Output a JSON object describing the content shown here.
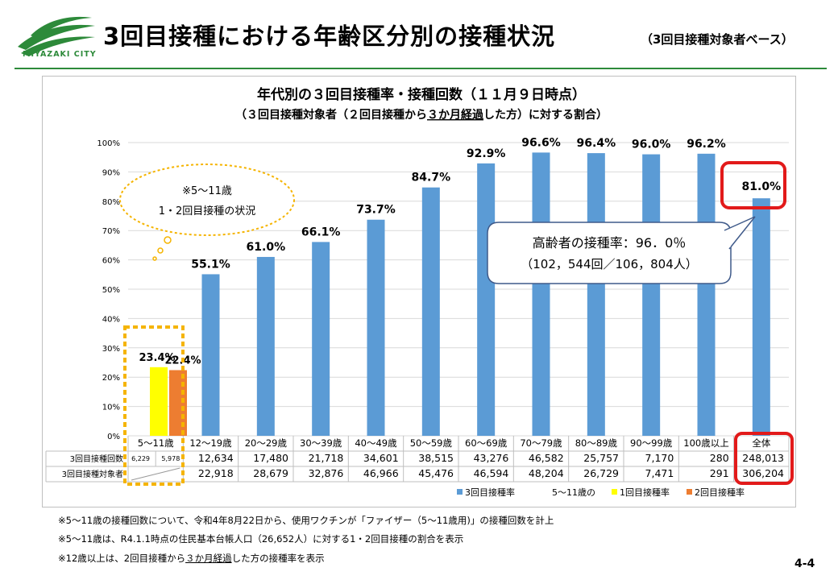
{
  "header": {
    "logo_text": "MIYAZAKI CITY",
    "title": "3回目接種における年齢区分別の接種状況",
    "subtitle": "（3回目接種対象者ベース）",
    "brand_color": "#2d8a3a"
  },
  "chart_data": {
    "type": "bar",
    "title": "年代別の３回目接種率・接種回数（１１月９日時点）",
    "subtitle_parts": [
      "（３回目接種対象者（２回目接種から",
      "３か月経過",
      "した方）に対する割合）"
    ],
    "ylim": [
      0,
      100
    ],
    "yticks": [
      "0%",
      "10%",
      "20%",
      "30%",
      "40%",
      "50%",
      "60%",
      "70%",
      "80%",
      "90%",
      "100%"
    ],
    "categories": [
      "5〜11歳",
      "12〜19歳",
      "20〜29歳",
      "30〜39歳",
      "40〜49歳",
      "50〜59歳",
      "60〜69歳",
      "70〜79歳",
      "80〜89歳",
      "90〜99歳",
      "100歳以上",
      "全体"
    ],
    "series": [
      {
        "name": "3回目接種率",
        "color": "#5b9bd5",
        "values": [
          null,
          55.1,
          61.0,
          66.1,
          73.7,
          84.7,
          92.9,
          96.6,
          96.4,
          96.0,
          96.2,
          81.0
        ],
        "labels": [
          "",
          "55.1%",
          "61.0%",
          "66.1%",
          "73.7%",
          "84.7%",
          "92.9%",
          "96.6%",
          "96.4%",
          "96.0%",
          "96.2%",
          "81.0%"
        ]
      },
      {
        "name": "1回目接種率",
        "color": "#ffff00",
        "values": [
          23.4,
          null,
          null,
          null,
          null,
          null,
          null,
          null,
          null,
          null,
          null,
          null
        ],
        "labels": [
          "23.4%",
          "",
          "",
          "",
          "",
          "",
          "",
          "",
          "",
          "",
          "",
          ""
        ]
      },
      {
        "name": "2回目接種率",
        "color": "#ed7d31",
        "values": [
          22.4,
          null,
          null,
          null,
          null,
          null,
          null,
          null,
          null,
          null,
          null,
          null
        ],
        "labels": [
          "22.4%",
          "",
          "",
          "",
          "",
          "",
          "",
          "",
          "",
          "",
          "",
          ""
        ]
      }
    ],
    "legend_prefix": "5〜11歳の",
    "table": {
      "rows": [
        {
          "label": "3回目接種回数",
          "values": [
            "",
            "12,634",
            "17,480",
            "21,718",
            "34,601",
            "38,515",
            "43,276",
            "46,582",
            "25,757",
            "7,170",
            "280",
            "248,013"
          ],
          "sub": [
            "6,229",
            "5,978"
          ]
        },
        {
          "label": "3回目接種対象者",
          "values": [
            "",
            "22,918",
            "28,679",
            "32,876",
            "46,966",
            "45,476",
            "46,594",
            "48,204",
            "26,729",
            "7,471",
            "291",
            "306,204"
          ]
        }
      ]
    },
    "callout_elderly": {
      "line1": "高齢者の接種率：96．0％",
      "line2": "（102，544回／106，804人）"
    },
    "callout_child": {
      "line1": "※5〜11歳",
      "line2": "1・2回目接種の状況"
    },
    "highlight_color": "#e21a1a",
    "child_box_color": "#f5b400",
    "grid": true,
    "legend_position": "bottom"
  },
  "footnotes": [
    [
      "※5〜11歳の接種回数について、令和4年8月22日から、使用ワクチンが「ファイザー（5〜11歳用)」の接種回数を計上"
    ],
    [
      "※5〜11歳は、R4.1.1時点の住民基本台帳人口（26,652人）に対する1・2回目接種の割合を表示"
    ],
    [
      "※12歳以上は、2回目接種から",
      "３か月経過",
      "した方の接種率を表示"
    ]
  ],
  "page_number": "4-4"
}
